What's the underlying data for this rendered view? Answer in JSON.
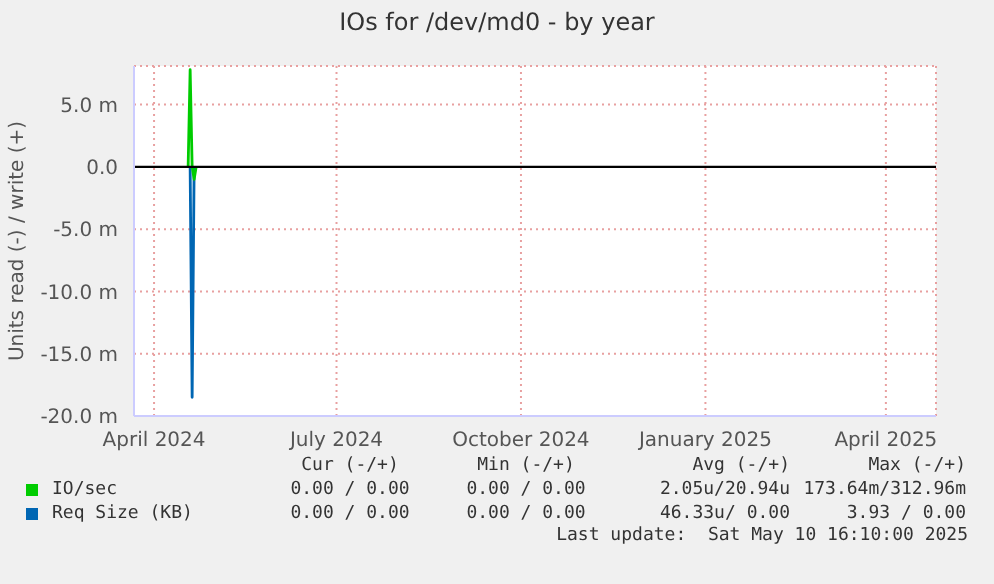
{
  "chart_data": {
    "type": "line",
    "title": "IOs for /dev/md0 - by year",
    "ylabel": "Units read (-) / write (+)",
    "xlim": [
      "2024-03-22",
      "2025-04-26"
    ],
    "xticks": [
      {
        "value": "2024-04-01",
        "label": "April 2024"
      },
      {
        "value": "2024-07-01",
        "label": "July 2024"
      },
      {
        "value": "2024-10-01",
        "label": "October 2024"
      },
      {
        "value": "2025-01-01",
        "label": "January 2025"
      },
      {
        "value": "2025-04-01",
        "label": "April 2025"
      }
    ],
    "ylim": [
      -20,
      8.1
    ],
    "yticks": [
      {
        "value": -20,
        "label": "-20.0 m"
      },
      {
        "value": -15,
        "label": "-15.0 m"
      },
      {
        "value": -10,
        "label": "-10.0 m"
      },
      {
        "value": -5,
        "label": "-5.0 m"
      },
      {
        "value": 0,
        "label": "0.0"
      },
      {
        "value": 5,
        "label": "5.0 m"
      }
    ],
    "grid": true,
    "legend": "bottom",
    "marker": "none",
    "line_style": "solid",
    "ref_lines": [
      {
        "axis": "y",
        "value": 0,
        "color": "#000000"
      }
    ],
    "series": [
      {
        "name": "IO/sec",
        "color": "#00cc00",
        "x": [
          "2024-04-18",
          "2024-04-19",
          "2024-04-20",
          "2024-04-21",
          "2024-04-22"
        ],
        "values": [
          0,
          7.8,
          0,
          -1.0,
          0
        ]
      },
      {
        "name": "Req Size (KB)",
        "color": "#0066b3",
        "x": [
          "2024-04-19",
          "2024-04-20",
          "2024-04-21"
        ],
        "values": [
          0,
          -18.5,
          0
        ]
      }
    ],
    "annotations": [
      "Cur (-/+)",
      "Min (-/+)",
      "Avg (-/+)",
      "Max (-/+)",
      "0.00 / 0.00",
      "0.00 / 0.00",
      "2.05u/20.94u",
      "173.64m/312.96m",
      "0.00 / 0.00",
      "0.00 / 0.00",
      "46.33u/ 0.00",
      "3.93 / 0.00",
      "Last update:  Sat May 10 16:10:00 2025"
    ]
  }
}
